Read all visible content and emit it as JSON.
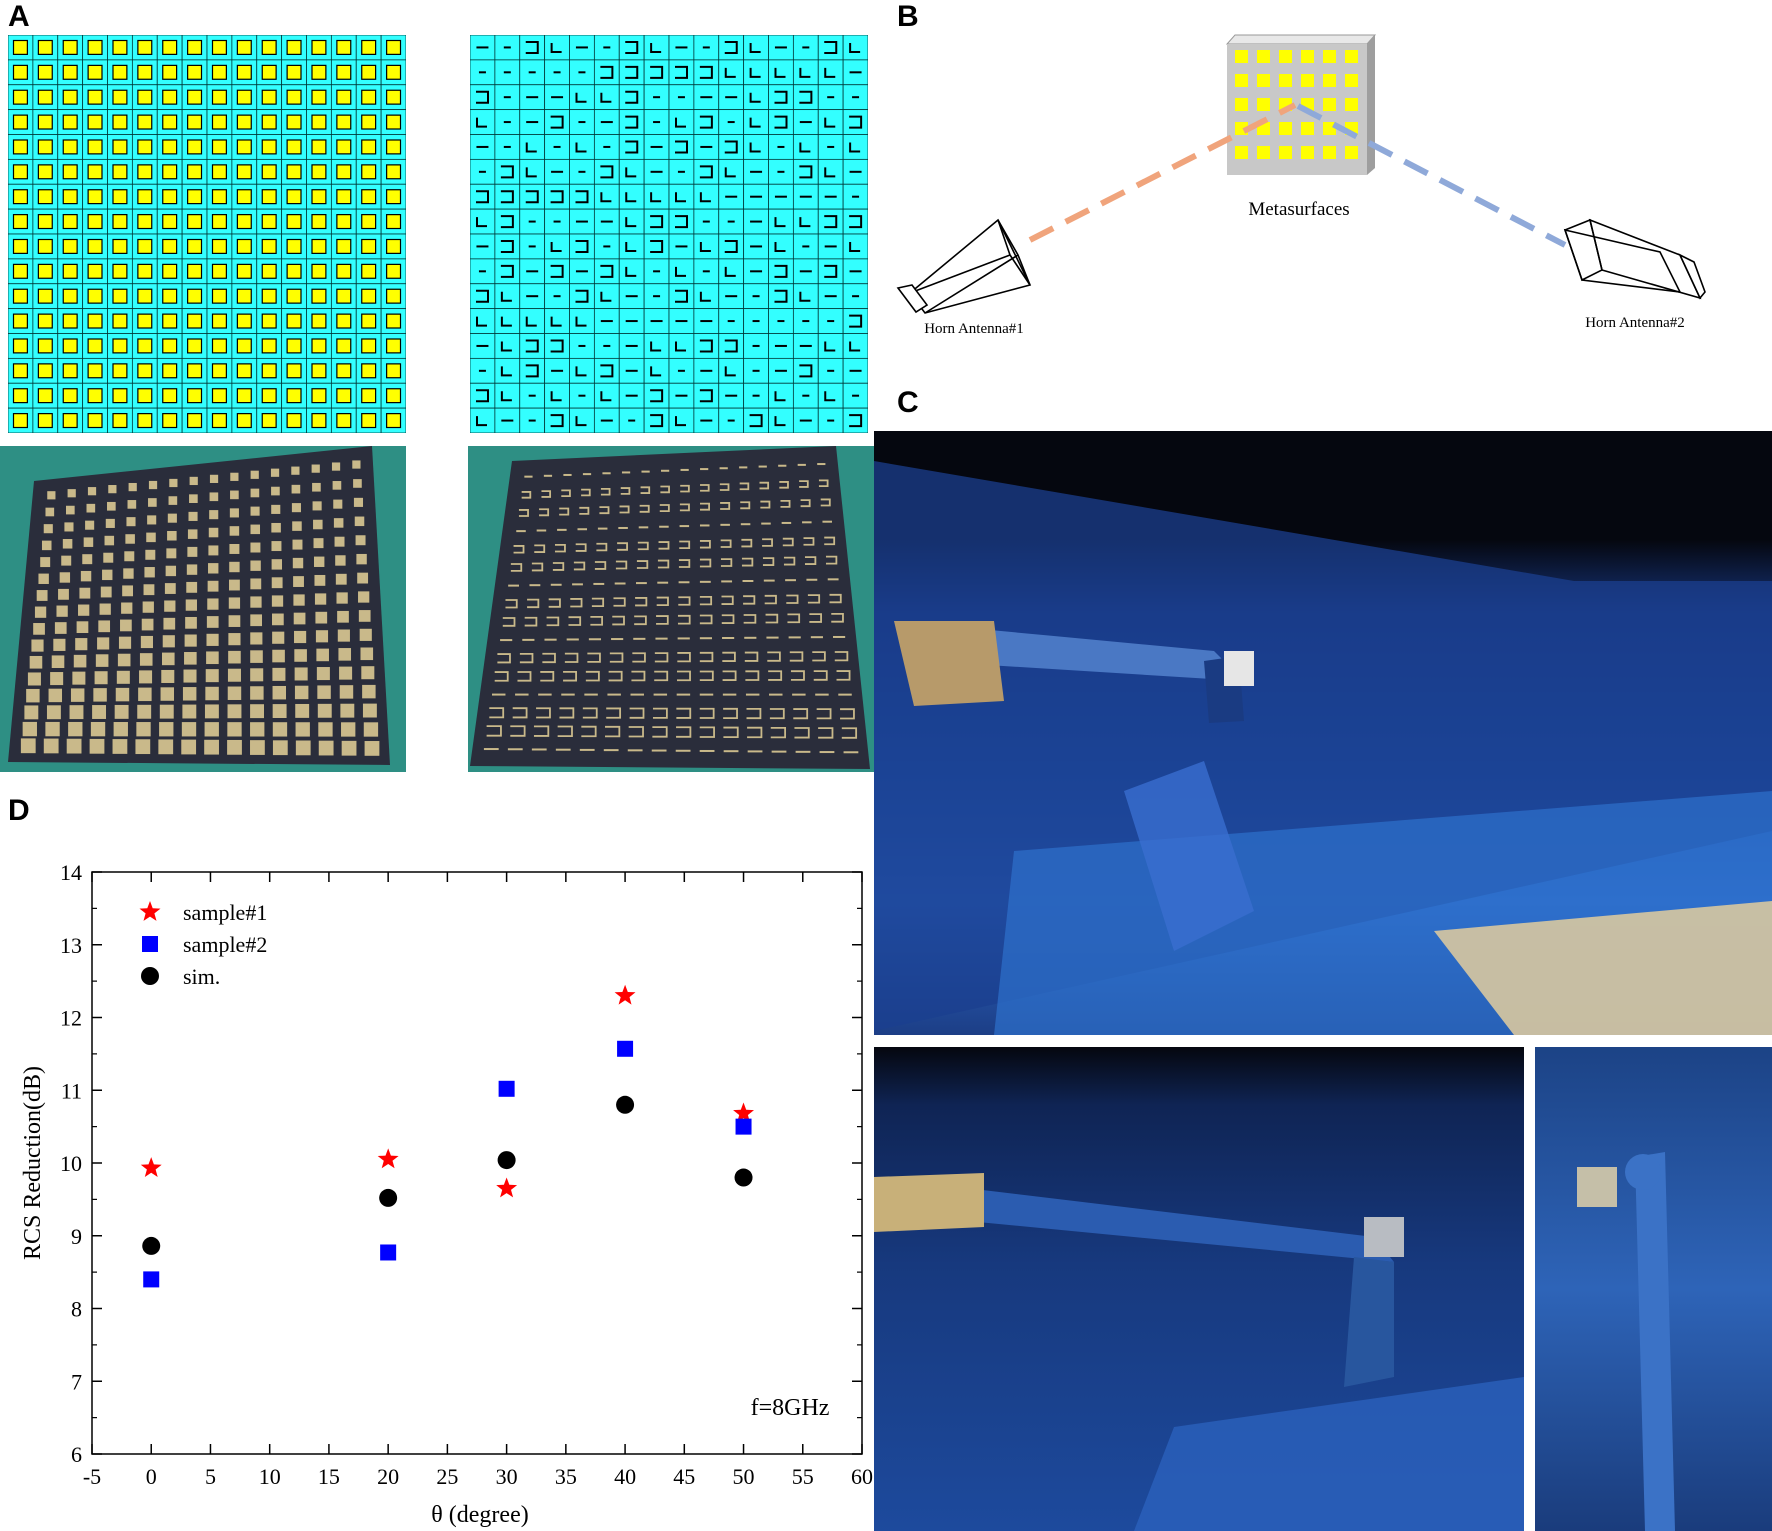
{
  "panels": {
    "a": "A",
    "b": "B",
    "c": "C",
    "d": "D"
  },
  "diagram_b": {
    "center_label": "Metasurfaces",
    "left_label": "Horn Antenna#1",
    "right_label": "Horn Antenna#2",
    "left_beam_color": "#f0a47c",
    "right_beam_color": "#8fa9d9",
    "patch_color": "#ffff00",
    "plate_color": "#c8c8c8"
  },
  "panel_a": {
    "substrate_color": "#33ffff",
    "patch_color": "#ffff00",
    "photo_bg_color": "#2e8f84"
  },
  "chart_data": {
    "type": "scatter",
    "xlabel": "θ (degree)",
    "ylabel": "RCS Reduction(dB)",
    "xlim": [
      -5,
      60
    ],
    "ylim": [
      6,
      14
    ],
    "xticks": [
      "-5",
      "0",
      "5",
      "10",
      "15",
      "20",
      "25",
      "30",
      "35",
      "40",
      "45",
      "50",
      "55",
      "60"
    ],
    "yticks": [
      "6",
      "7",
      "8",
      "9",
      "10",
      "11",
      "12",
      "13",
      "14"
    ],
    "annotation": "f=8GHz",
    "legend_position": "top-left",
    "series": [
      {
        "name": "sample#1",
        "marker": "star",
        "color": "#ff0000",
        "x": [
          0,
          20,
          30,
          40,
          50
        ],
        "y": [
          9.93,
          10.05,
          9.65,
          12.3,
          10.68
        ]
      },
      {
        "name": "sample#2",
        "marker": "square",
        "color": "#0000ff",
        "x": [
          0,
          20,
          30,
          40,
          50
        ],
        "y": [
          8.4,
          8.77,
          11.02,
          11.57,
          10.5
        ]
      },
      {
        "name": "sim.",
        "marker": "circle",
        "color": "#000000",
        "x": [
          0,
          20,
          30,
          40,
          50
        ],
        "y": [
          8.86,
          9.52,
          10.04,
          10.8,
          9.8
        ]
      }
    ]
  }
}
